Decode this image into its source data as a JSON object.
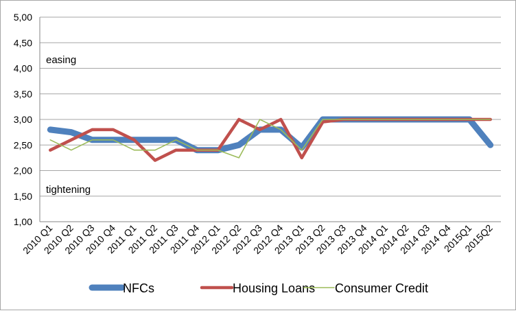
{
  "chart_data": {
    "type": "line",
    "title": "",
    "xlabel": "",
    "ylabel": "",
    "ylim": [
      1.0,
      5.0
    ],
    "y_ticks": [
      "1,00",
      "1,50",
      "2,00",
      "2,50",
      "3,00",
      "3,50",
      "4,00",
      "4,50",
      "5,00"
    ],
    "grid": "horizontal",
    "legend_position": "bottom",
    "categories": [
      "2010 Q1",
      "2010 Q2",
      "2010 Q3",
      "2010 Q4",
      "2011 Q1",
      "2011 Q2",
      "2011 Q3",
      "2011 Q4",
      "2012 Q1",
      "2012 Q2",
      "2012 Q3",
      "2012 Q4",
      "2013 Q1",
      "2013 Q2",
      "2013 Q3",
      "2013 Q4",
      "2014 Q1",
      "2014 Q2",
      "2014 Q3",
      "2014 Q4",
      "2015Q1",
      "2015Q2"
    ],
    "series": [
      {
        "name": "NFCs",
        "color": "#4f81bd",
        "values": [
          2.8,
          2.75,
          2.6,
          2.6,
          2.6,
          2.6,
          2.6,
          2.4,
          2.4,
          2.5,
          2.8,
          2.8,
          2.45,
          3.0,
          3.0,
          3.0,
          3.0,
          3.0,
          3.0,
          3.0,
          3.0,
          2.5
        ]
      },
      {
        "name": "Housing Loans",
        "color": "#c0504d",
        "values": [
          2.4,
          2.6,
          2.8,
          2.8,
          2.6,
          2.2,
          2.4,
          2.4,
          2.4,
          3.0,
          2.8,
          3.0,
          2.25,
          2.95,
          3.0,
          3.0,
          3.0,
          3.0,
          3.0,
          3.0,
          3.0,
          3.0
        ]
      },
      {
        "name": "Consumer Credit",
        "color": "#9bbb59",
        "values": [
          2.6,
          2.4,
          2.6,
          2.6,
          2.4,
          2.4,
          2.6,
          2.4,
          2.4,
          2.25,
          3.0,
          2.8,
          2.4,
          3.0,
          3.0,
          3.0,
          3.0,
          3.0,
          3.0,
          3.0,
          3.0,
          3.0
        ]
      }
    ],
    "annotations": {
      "easing": "easing",
      "tightening": "tightening"
    }
  }
}
